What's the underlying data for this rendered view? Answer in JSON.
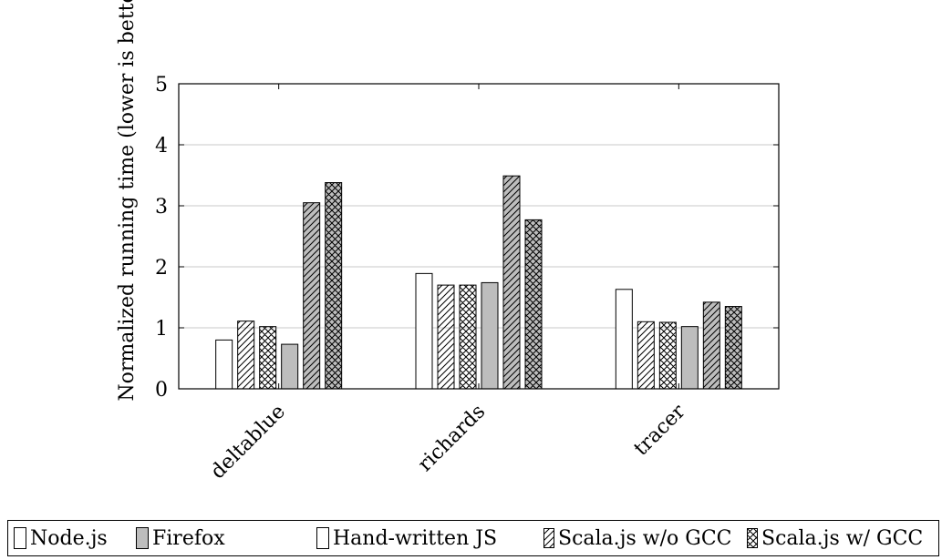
{
  "chart_data": {
    "type": "bar",
    "ylabel": "Normalized running time (lower is better)",
    "xlabel": "",
    "ylim": [
      0,
      5
    ],
    "yticks": [
      0,
      1,
      2,
      3,
      4,
      5
    ],
    "grid": true,
    "legend_position": "bottom",
    "categories": [
      "deltablue",
      "richards",
      "tracer"
    ],
    "series": [
      {
        "name": "Node.js",
        "values": [
          0.8,
          1.89,
          1.63
        ]
      },
      {
        "name": "Firefox",
        "values": [
          1.11,
          1.7,
          1.1
        ]
      },
      {
        "name": "Hand-written JS",
        "values": [
          1.02,
          1.7,
          1.09
        ]
      },
      {
        "name": "Scala.js w/o GCC",
        "values": [
          0.73,
          1.74,
          1.02
        ]
      },
      {
        "name": "Scala.js w/ GCC",
        "values": [
          3.05,
          3.49,
          1.42
        ]
      },
      {
        "name": "",
        "values": [
          3.38,
          2.77,
          1.35
        ]
      }
    ],
    "legend": [
      "Node.js",
      "Firefox",
      "Hand-written JS",
      "Scala.js w/o GCC",
      "Scala.js w/ GCC"
    ]
  }
}
